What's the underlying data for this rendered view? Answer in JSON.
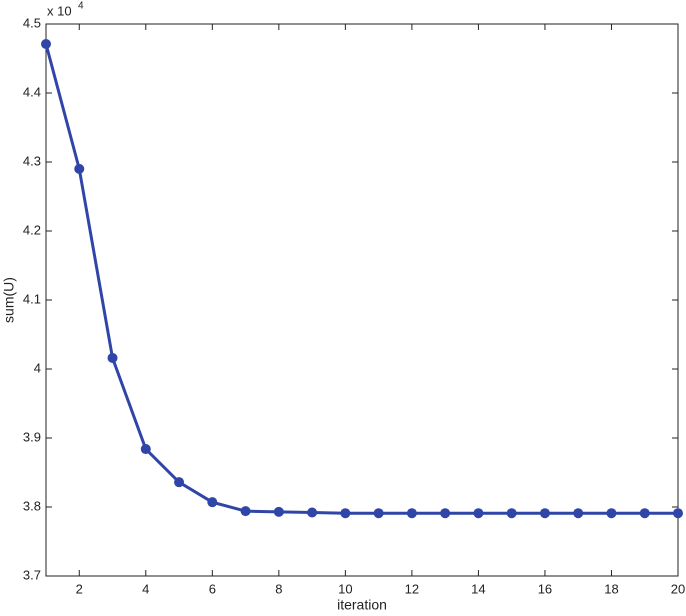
{
  "chart_data": {
    "type": "line",
    "x_label": "iteration",
    "y_label": "sum(U)",
    "multiplier": "x 10",
    "multiplier_exponent": "4",
    "x": [
      1,
      2,
      3,
      4,
      5,
      6,
      7,
      8,
      9,
      10,
      11,
      12,
      13,
      14,
      15,
      16,
      17,
      18,
      19,
      20
    ],
    "series": [
      {
        "color": "#2f45a8",
        "values": [
          4.471,
          4.29,
          4.016,
          3.884,
          3.836,
          3.807,
          3.794,
          3.793,
          3.792,
          3.791,
          3.791,
          3.791,
          3.791,
          3.791,
          3.791,
          3.791,
          3.791,
          3.791,
          3.791,
          3.791
        ]
      }
    ],
    "xlim": [
      1,
      20
    ],
    "xticks": [
      2,
      4,
      6,
      8,
      10,
      12,
      14,
      16,
      18,
      20
    ],
    "ylim": [
      3.7,
      4.5
    ],
    "yticks": [
      3.7,
      3.8,
      3.9,
      4,
      4.1,
      4.2,
      4.3,
      4.4,
      4.5
    ]
  }
}
